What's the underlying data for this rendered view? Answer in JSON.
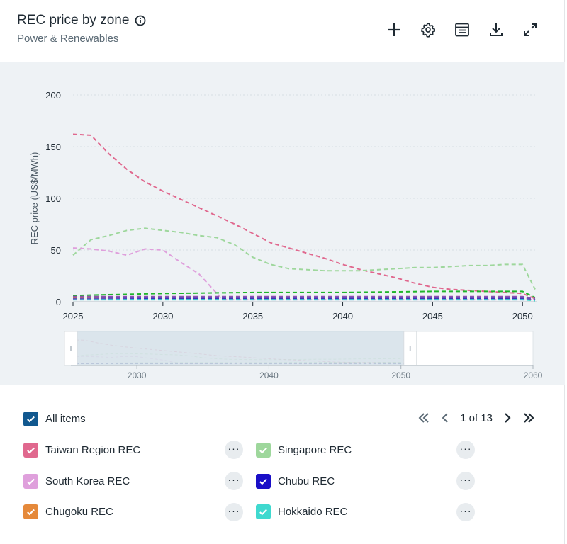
{
  "header": {
    "title": "REC price by zone",
    "subtitle": "Power & Renewables"
  },
  "toolbar": [
    "plus-icon",
    "gear-icon",
    "table-icon",
    "download-icon",
    "expand-icon"
  ],
  "legend": {
    "all_label": "All items",
    "pager": "1 of 13",
    "items": [
      {
        "label": "Taiwan Region REC",
        "color": "#e0688e"
      },
      {
        "label": "Singapore REC",
        "color": "#9ed79c"
      },
      {
        "label": "South Korea REC",
        "color": "#dfa0dc"
      },
      {
        "label": "Chubu REC",
        "color": "#1a0fc7"
      },
      {
        "label": "Chugoku REC",
        "color": "#e5893a"
      },
      {
        "label": "Hokkaido REC",
        "color": "#3fd9cf"
      }
    ]
  },
  "chart_data": {
    "type": "line",
    "ylabel": "REC price (US$/MWh)",
    "xlabel": "",
    "ylim": [
      0,
      200
    ],
    "yticks": [
      "0",
      "50",
      "100",
      "150",
      "200"
    ],
    "xlim": [
      2025,
      2050.7
    ],
    "xticks": [
      "2025",
      "2030",
      "2035",
      "2040",
      "2045",
      "2050"
    ],
    "grid": true,
    "line_style": "dashed",
    "series": [
      {
        "name": "Taiwan Region REC",
        "color": "#e0688e",
        "x": [
          2025,
          2026,
          2027,
          2028,
          2029,
          2030,
          2031,
          2032,
          2033,
          2034,
          2035,
          2036,
          2037,
          2038,
          2039,
          2040,
          2041,
          2042,
          2043,
          2044,
          2045,
          2046,
          2047,
          2048,
          2049,
          2050,
          2050.7
        ],
        "y": [
          162,
          161,
          143,
          128,
          116,
          107,
          99,
          91,
          83,
          75,
          66,
          57,
          52,
          47,
          42,
          36,
          31,
          27,
          23,
          18,
          14,
          12,
          11,
          10,
          9,
          8,
          3
        ]
      },
      {
        "name": "Singapore REC",
        "color": "#9ed79c",
        "x": [
          2025,
          2026,
          2027,
          2028,
          2029,
          2030,
          2031,
          2032,
          2033,
          2034,
          2035,
          2036,
          2037,
          2038,
          2039,
          2040,
          2041,
          2042,
          2043,
          2044,
          2045,
          2046,
          2047,
          2048,
          2049,
          2050,
          2050.7
        ],
        "y": [
          45,
          60,
          64,
          69,
          71,
          69,
          67,
          64,
          62,
          55,
          43,
          36,
          32,
          31,
          30,
          30,
          30,
          31,
          32,
          33,
          33,
          34,
          35,
          35,
          36,
          36,
          12
        ]
      },
      {
        "name": "South Korea REC",
        "color": "#dfa0dc",
        "x": [
          2025,
          2026,
          2027,
          2028,
          2029,
          2030,
          2031,
          2032,
          2033,
          2033.3,
          2040,
          2050.7
        ],
        "y": [
          52,
          51,
          49,
          45,
          51,
          50,
          38,
          27,
          8,
          2,
          2,
          2
        ]
      },
      {
        "name": "Chubu REC",
        "color": "#1a0fc7",
        "x": [
          2025,
          2035,
          2050,
          2050.7
        ],
        "y": [
          3,
          3,
          3,
          2
        ]
      },
      {
        "name": "Chugoku REC",
        "color": "#e5893a",
        "x": [
          2025,
          2035,
          2050,
          2050.7
        ],
        "y": [
          4,
          4,
          4,
          2
        ]
      },
      {
        "name": "Hokkaido REC",
        "color": "#3fd9cf",
        "x": [
          2025,
          2035,
          2050,
          2050.7
        ],
        "y": [
          2,
          2,
          2,
          1
        ]
      },
      {
        "color": "#1fb52a",
        "x": [
          2025,
          2030,
          2035,
          2040,
          2045,
          2050,
          2050.7
        ],
        "y": [
          6,
          8,
          9,
          9,
          10,
          10,
          4
        ]
      },
      {
        "color": "#8e4fb0",
        "x": [
          2025,
          2030,
          2035,
          2040,
          2045,
          2050,
          2050.7
        ],
        "y": [
          5,
          5,
          5,
          5,
          5,
          5,
          3
        ]
      },
      {
        "color": "#6a4bb7",
        "x": [
          2025,
          2030,
          2035,
          2040,
          2045,
          2050,
          2050.7
        ],
        "y": [
          3,
          4,
          4,
          4,
          4,
          4,
          2
        ]
      }
    ],
    "navigator": {
      "xticks": [
        "2030",
        "2040",
        "2050",
        "2060"
      ],
      "range": [
        2025,
        2060
      ],
      "selected": [
        2025,
        2050.7
      ]
    }
  }
}
